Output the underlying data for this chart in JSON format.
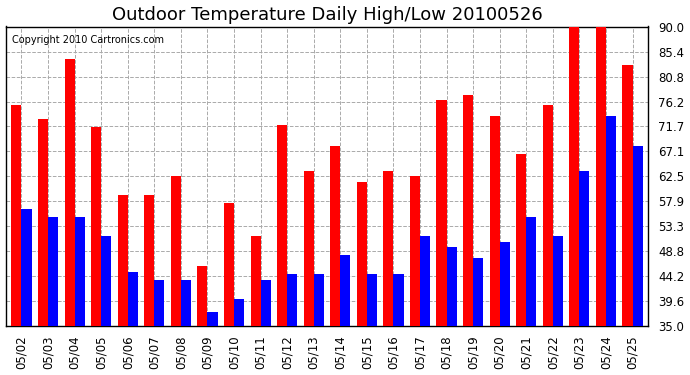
{
  "title": "Outdoor Temperature Daily High/Low 20100526",
  "copyright": "Copyright 2010 Cartronics.com",
  "categories": [
    "05/02",
    "05/03",
    "05/04",
    "05/05",
    "05/06",
    "05/07",
    "05/08",
    "05/09",
    "05/10",
    "05/11",
    "05/12",
    "05/13",
    "05/14",
    "05/15",
    "05/16",
    "05/17",
    "05/18",
    "05/19",
    "05/20",
    "05/21",
    "05/22",
    "05/23",
    "05/24",
    "05/25"
  ],
  "highs": [
    75.5,
    73.0,
    84.0,
    71.5,
    59.0,
    59.0,
    62.5,
    46.0,
    57.5,
    51.5,
    72.0,
    63.5,
    68.0,
    61.5,
    63.5,
    62.5,
    76.5,
    77.5,
    73.5,
    66.5,
    75.5,
    90.0,
    90.0,
    83.0
  ],
  "lows": [
    56.5,
    55.0,
    55.0,
    51.5,
    45.0,
    43.5,
    43.5,
    37.5,
    40.0,
    43.5,
    44.5,
    44.5,
    48.0,
    44.5,
    44.5,
    51.5,
    49.5,
    47.5,
    50.5,
    55.0,
    51.5,
    63.5,
    73.5,
    68.0
  ],
  "high_color": "#ff0000",
  "low_color": "#0000ff",
  "bg_color": "#ffffff",
  "grid_color": "#aaaaaa",
  "ylim": [
    35.0,
    90.0
  ],
  "yticks": [
    35.0,
    39.6,
    44.2,
    48.8,
    53.3,
    57.9,
    62.5,
    67.1,
    71.7,
    76.2,
    80.8,
    85.4,
    90.0
  ],
  "title_fontsize": 13,
  "tick_fontsize": 8.5,
  "bar_width": 0.38
}
